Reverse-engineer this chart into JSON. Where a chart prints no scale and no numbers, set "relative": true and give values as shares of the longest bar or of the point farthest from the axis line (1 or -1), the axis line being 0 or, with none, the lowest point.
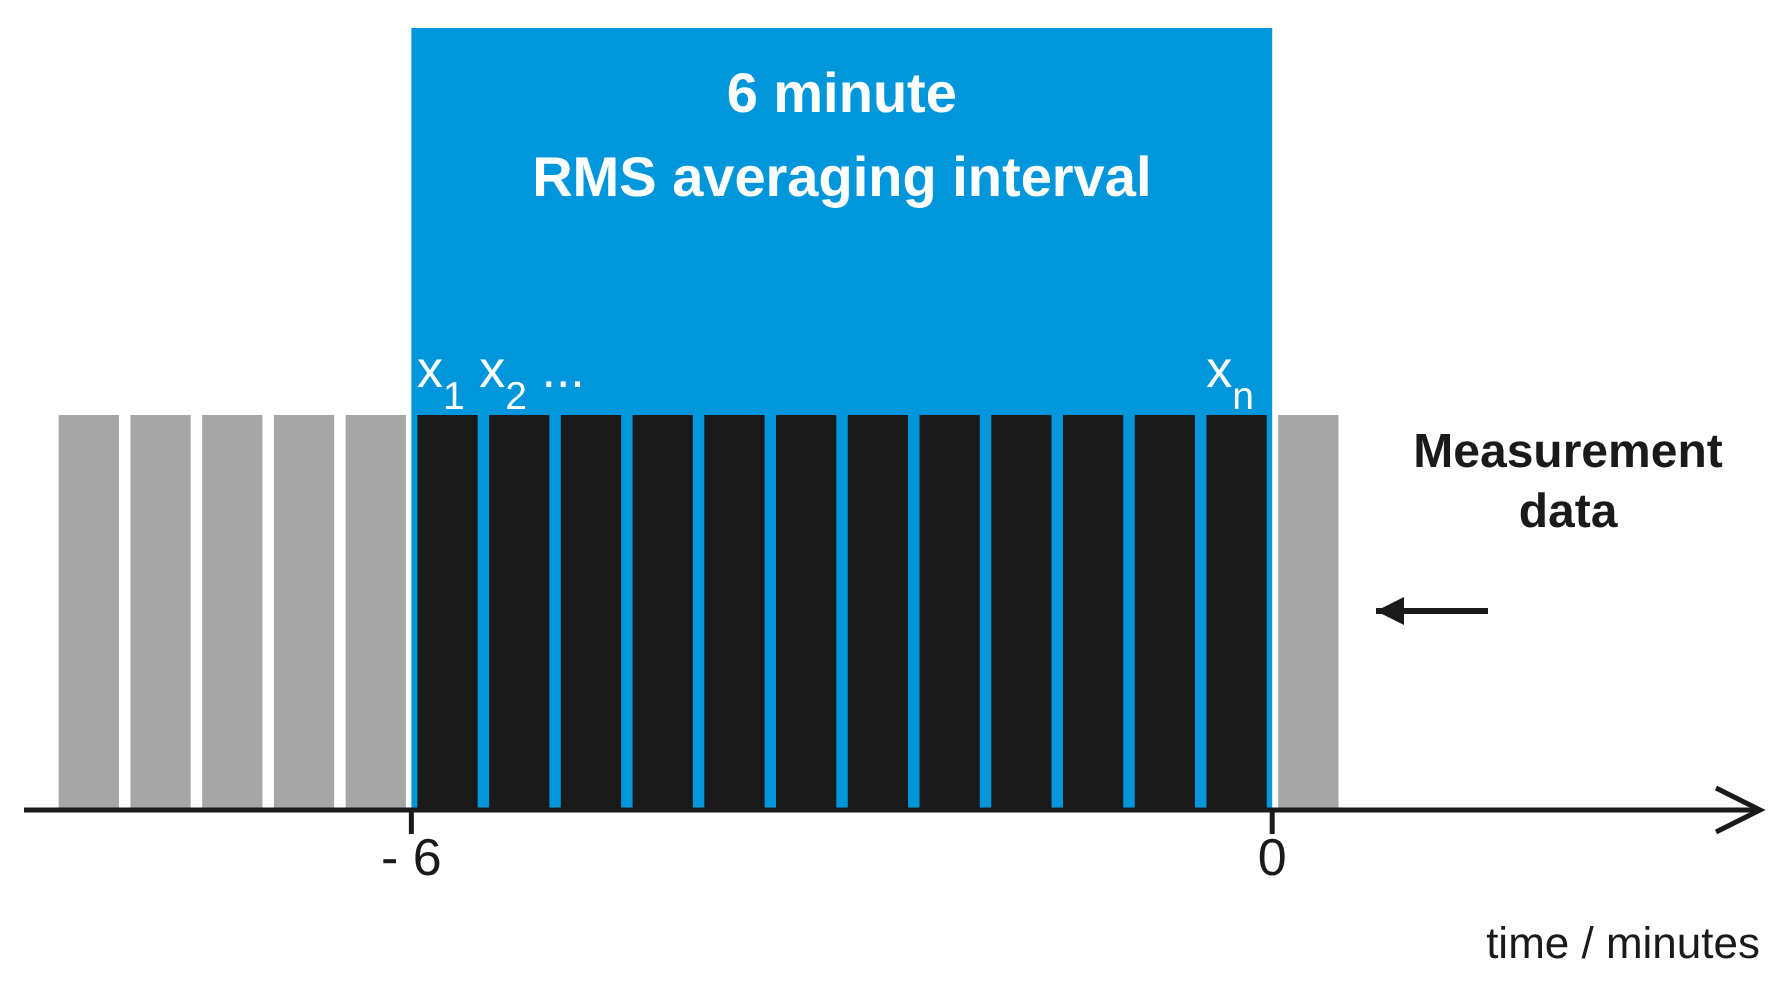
{
  "chart_data": {
    "type": "bar",
    "relative": true,
    "x": [
      -8.25,
      -7.75,
      -7.25,
      -6.75,
      -6.25,
      -5.75,
      -5.25,
      -4.75,
      -4.25,
      -3.75,
      -3.25,
      -2.75,
      -2.25,
      -1.75,
      -1.25,
      -0.75,
      -0.25,
      0.25
    ],
    "values": [
      1,
      1,
      1,
      1,
      1,
      1,
      1,
      1,
      1,
      1,
      1,
      1,
      1,
      1,
      1,
      1,
      1,
      1
    ],
    "colors": [
      "#a6a6a6",
      "#a6a6a6",
      "#a6a6a6",
      "#a6a6a6",
      "#a6a6a6",
      "#1a1a1a",
      "#1a1a1a",
      "#1a1a1a",
      "#1a1a1a",
      "#1a1a1a",
      "#1a1a1a",
      "#1a1a1a",
      "#1a1a1a",
      "#1a1a1a",
      "#1a1a1a",
      "#1a1a1a",
      "#1a1a1a",
      "#a6a6a6"
    ],
    "xlim": [
      -8.7,
      3.4
    ],
    "xticks": [
      {
        "value": -6,
        "label": "- 6"
      },
      0
    ],
    "xlabel": "time / minutes",
    "bands": [
      {
        "axis": "x",
        "from": -6,
        "to": 0,
        "label": "6 minute\nRMS averaging interval",
        "color": "#0096dc"
      }
    ],
    "annotations": [
      "x$_{1}$ x$_{2}$ ...",
      "x$_{n}$",
      "Measurement data"
    ]
  }
}
